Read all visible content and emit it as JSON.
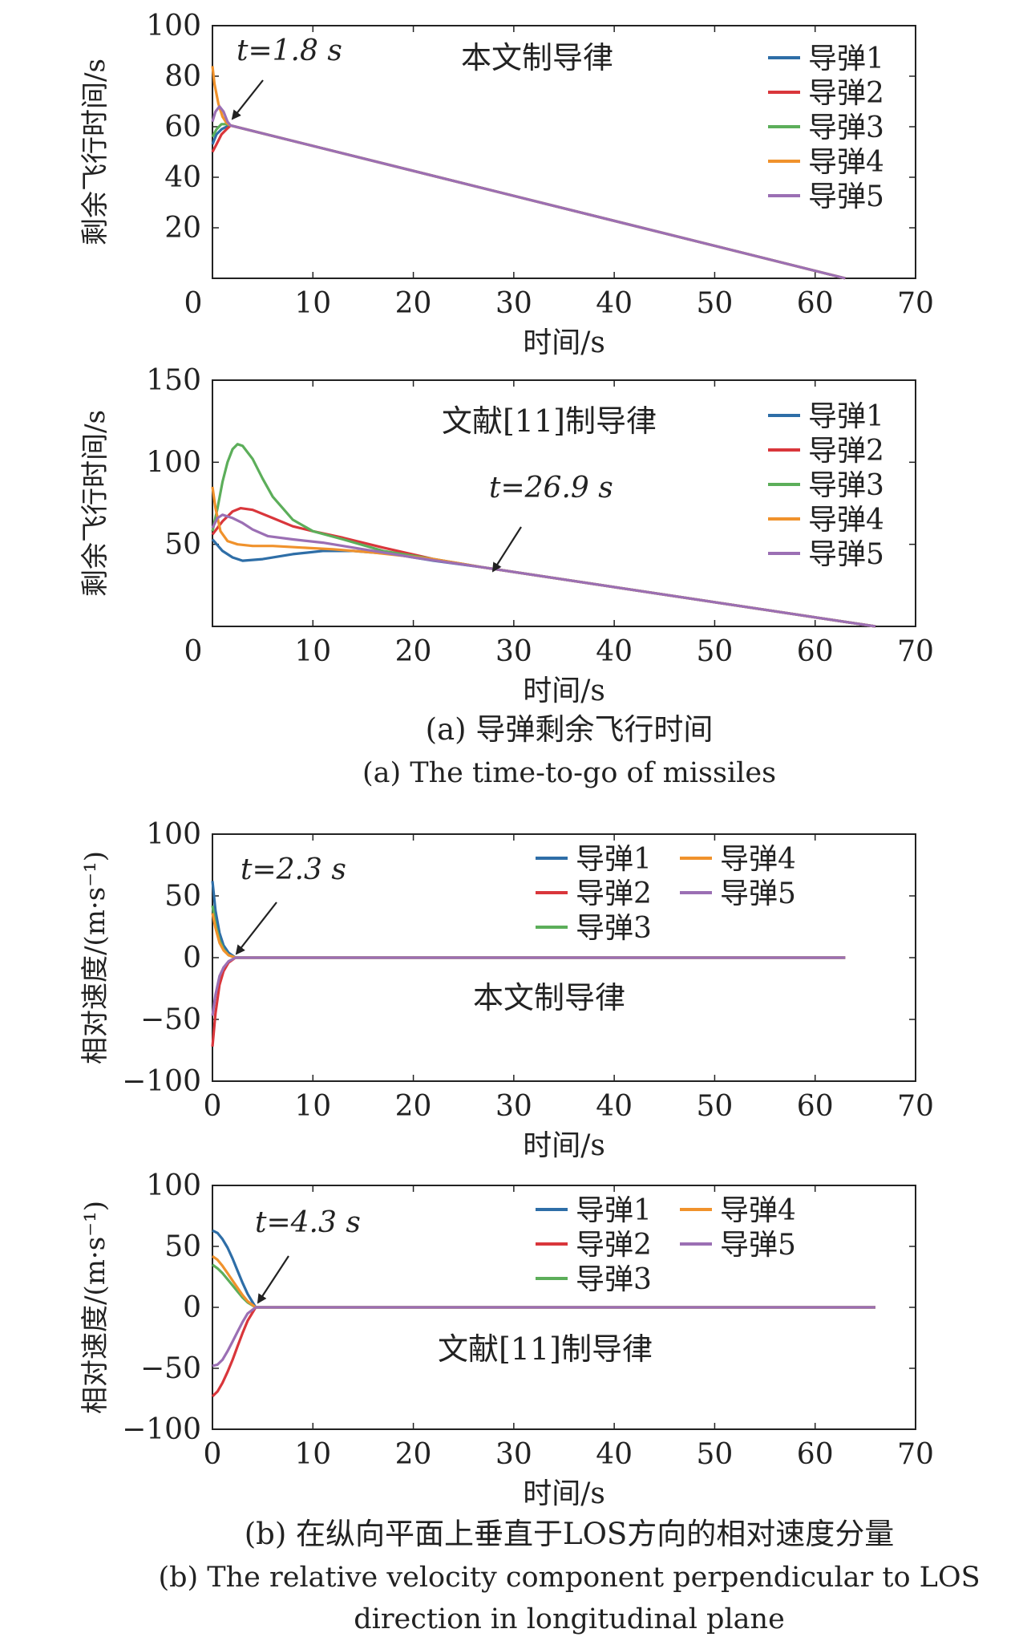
{
  "captions": {
    "a_cn": "(a) 导弹剩余飞行时间",
    "a_en": "(a) The time-to-go of missiles",
    "b_cn": "(b) 在纵向平面上垂直于LOS方向的相对速度分量",
    "b_en_1": "(b) The relative velocity component perpendicular to LOS",
    "b_en_2": "direction in longitudinal plane"
  },
  "colors": {
    "missile1": "#2e6ea7",
    "missile2": "#d9363b",
    "missile3": "#5cae5a",
    "missile4": "#f0922c",
    "missile5": "#9b6fb4",
    "axis": "#222222"
  },
  "chart_data": [
    {
      "type": "line",
      "title": "本文制导律",
      "annotation": "t=1.8 s",
      "annotation_x": 1.8,
      "annotation_y": 60,
      "xlabel": "时间/s",
      "ylabel": "剩余飞行时间/s",
      "xlim": [
        0,
        70
      ],
      "ylim": [
        0,
        100
      ],
      "xticks": [
        0,
        10,
        20,
        30,
        40,
        50,
        60,
        70
      ],
      "yticks": [
        20,
        40,
        60,
        80,
        100
      ],
      "legend_position": "top-right",
      "legend_columns": 1,
      "series": [
        {
          "name": "导弹1",
          "x": [
            0,
            0.4,
            0.9,
            1.4,
            1.8,
            63
          ],
          "y": [
            53,
            57,
            59,
            60,
            60.5,
            0
          ]
        },
        {
          "name": "导弹2",
          "x": [
            0,
            0.4,
            0.9,
            1.4,
            1.8,
            63
          ],
          "y": [
            50,
            53,
            57,
            59,
            60.5,
            0
          ]
        },
        {
          "name": "导弹3",
          "x": [
            0,
            0.4,
            0.9,
            1.4,
            1.8,
            63
          ],
          "y": [
            56,
            59,
            61,
            61,
            60.5,
            0
          ]
        },
        {
          "name": "导弹4",
          "x": [
            0,
            0.2,
            0.6,
            1.0,
            1.4,
            1.8,
            63
          ],
          "y": [
            84,
            77,
            69,
            64,
            61.5,
            60.5,
            0
          ]
        },
        {
          "name": "导弹5",
          "x": [
            0,
            0.3,
            0.7,
            1.1,
            1.5,
            1.8,
            63
          ],
          "y": [
            62,
            66,
            68,
            66,
            62,
            60.5,
            0
          ]
        }
      ]
    },
    {
      "type": "line",
      "title": "文献[11]制导律",
      "annotation": "t=26.9 s",
      "annotation_x": 26.9,
      "annotation_y": 36,
      "xlabel": "时间/s",
      "ylabel": "剩余飞行时间/s",
      "xlim": [
        0,
        70
      ],
      "ylim": [
        0,
        150
      ],
      "xticks": [
        0,
        10,
        20,
        30,
        40,
        50,
        60,
        70
      ],
      "yticks": [
        50,
        100,
        150
      ],
      "legend_position": "top-right",
      "legend_columns": 1,
      "series": [
        {
          "name": "导弹1",
          "x": [
            0,
            1,
            2,
            3,
            5,
            8,
            11,
            14,
            18,
            22,
            26.9,
            66
          ],
          "y": [
            53,
            46,
            42,
            40,
            41,
            44,
            46,
            46,
            44,
            40,
            36,
            0
          ]
        },
        {
          "name": "导弹2",
          "x": [
            0,
            1,
            2,
            2.8,
            4,
            6,
            8,
            10,
            13,
            17,
            22,
            26.9,
            66
          ],
          "y": [
            56,
            64,
            70,
            72,
            71,
            66,
            61,
            58,
            54,
            48,
            41,
            36,
            0
          ]
        },
        {
          "name": "导弹3",
          "x": [
            0,
            0.5,
            1,
            1.5,
            2,
            2.5,
            3,
            4,
            5,
            6,
            8,
            10,
            13,
            17,
            22,
            26.9,
            66
          ],
          "y": [
            58,
            72,
            88,
            100,
            108,
            111,
            110,
            102,
            90,
            79,
            65,
            58,
            53,
            46,
            41,
            36,
            0
          ]
        },
        {
          "name": "导弹4",
          "x": [
            0,
            0.3,
            0.8,
            1.5,
            2.5,
            4,
            6,
            9,
            12,
            16,
            22,
            26.9,
            66
          ],
          "y": [
            85,
            72,
            58,
            52,
            50,
            49,
            49,
            48,
            47,
            45,
            41,
            36,
            0
          ]
        },
        {
          "name": "导弹5",
          "x": [
            0,
            0.5,
            1,
            1.5,
            2,
            3,
            4,
            5.5,
            8,
            11,
            15,
            20,
            26.9,
            66
          ],
          "y": [
            60,
            66,
            68,
            67,
            66,
            63,
            59,
            55,
            53,
            51,
            47,
            42,
            36,
            0
          ]
        }
      ]
    },
    {
      "type": "line",
      "title": "本文制导律",
      "annotation": "t=2.3 s",
      "annotation_x": 2.3,
      "annotation_y": 0,
      "xlabel": "时间/s",
      "ylabel": "相对速度/(m·s⁻¹)",
      "xlim": [
        0,
        70
      ],
      "ylim": [
        -100,
        100
      ],
      "xticks": [
        0,
        10,
        20,
        30,
        40,
        50,
        60,
        70
      ],
      "yticks": [
        -100,
        -50,
        0,
        50,
        100
      ],
      "legend_position": "top-right",
      "legend_columns": 2,
      "series": [
        {
          "name": "导弹1",
          "x": [
            0,
            0.3,
            0.7,
            1.1,
            1.6,
            2.3,
            63
          ],
          "y": [
            62,
            38,
            20,
            10,
            4,
            0,
            0
          ]
        },
        {
          "name": "导弹2",
          "x": [
            0,
            0.3,
            0.7,
            1.1,
            1.6,
            2.3,
            63
          ],
          "y": [
            -72,
            -45,
            -22,
            -11,
            -4,
            0,
            0
          ]
        },
        {
          "name": "导弹3",
          "x": [
            0,
            0.3,
            0.7,
            1.1,
            1.6,
            2.3,
            63
          ],
          "y": [
            42,
            27,
            14,
            7,
            2,
            0,
            0
          ]
        },
        {
          "name": "导弹4",
          "x": [
            0,
            0.3,
            0.7,
            1.1,
            1.6,
            2.3,
            63
          ],
          "y": [
            36,
            24,
            12,
            6,
            2,
            0,
            0
          ]
        },
        {
          "name": "导弹5",
          "x": [
            0,
            0.3,
            0.7,
            1.1,
            1.6,
            2.3,
            63
          ],
          "y": [
            -47,
            -30,
            -15,
            -8,
            -3,
            0,
            0
          ]
        }
      ]
    },
    {
      "type": "line",
      "title": "文献[11]制导律",
      "annotation": "t=4.3 s",
      "annotation_x": 4.3,
      "annotation_y": 0,
      "xlabel": "时间/s",
      "ylabel": "相对速度/(m·s⁻¹)",
      "xlim": [
        0,
        70
      ],
      "ylim": [
        -100,
        100
      ],
      "xticks": [
        0,
        10,
        20,
        30,
        40,
        50,
        60,
        70
      ],
      "yticks": [
        -100,
        -50,
        0,
        50,
        100
      ],
      "legend_position": "top-right",
      "legend_columns": 2,
      "series": [
        {
          "name": "导弹1",
          "x": [
            0,
            0.5,
            1,
            1.5,
            2,
            2.5,
            3,
            3.5,
            4.3,
            66
          ],
          "y": [
            63,
            61,
            56,
            49,
            40,
            30,
            20,
            11,
            0,
            0
          ]
        },
        {
          "name": "导弹2",
          "x": [
            0,
            0.5,
            1,
            1.5,
            2,
            2.5,
            3,
            3.5,
            4.3,
            66
          ],
          "y": [
            -73,
            -69,
            -62,
            -53,
            -43,
            -32,
            -21,
            -11,
            0,
            0
          ]
        },
        {
          "name": "导弹3",
          "x": [
            0,
            0.5,
            1,
            1.5,
            2,
            2.5,
            3,
            3.5,
            4.3,
            66
          ],
          "y": [
            35,
            32,
            28,
            23,
            18,
            13,
            8,
            4,
            0,
            0
          ]
        },
        {
          "name": "导弹4",
          "x": [
            0,
            0.5,
            1,
            1.5,
            2,
            2.5,
            3,
            3.5,
            4.3,
            66
          ],
          "y": [
            42,
            39,
            34,
            28,
            22,
            16,
            10,
            5,
            0,
            0
          ]
        },
        {
          "name": "导弹5",
          "x": [
            0,
            0.5,
            1,
            1.5,
            2,
            2.5,
            3,
            3.5,
            4.3,
            66
          ],
          "y": [
            -48,
            -47,
            -43,
            -36,
            -28,
            -20,
            -12,
            -5,
            0,
            0
          ]
        }
      ]
    }
  ]
}
